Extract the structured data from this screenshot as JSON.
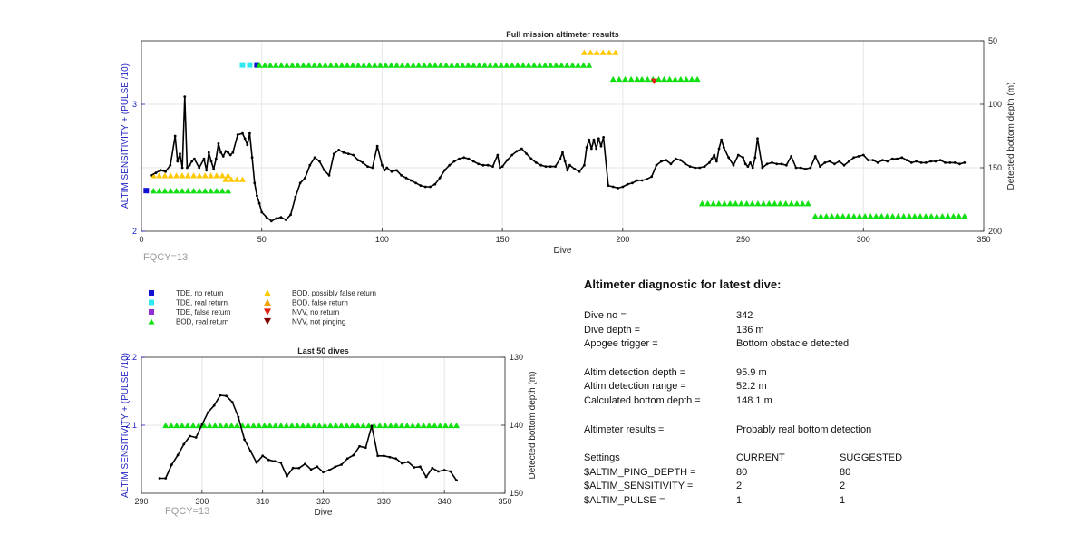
{
  "colors": {
    "tde_no_return": "#1010d0",
    "tde_real_return": "#30e8f0",
    "tde_false_return": "#9030d0",
    "bod_real_return": "#10e010",
    "bod_possibly_false": "#ffc800",
    "bod_false_return": "#f0a000",
    "nvv_no_return": "#e02010",
    "nvv_not_pinging": "#800000",
    "left_axis": "#2020c0",
    "series_line": "#000000",
    "fqcy_text": "#9a9a9a"
  },
  "chart_data": [
    {
      "type": "line",
      "title": "Full mission altimeter results",
      "xlabel": "Dive",
      "ylabel_left": "ALTIM SENSITIVITY + (PULSE /10)",
      "ylabel_right": "Detected bottom depth (m)",
      "xlim": [
        0,
        350
      ],
      "ylim_left": [
        2,
        3.5
      ],
      "ylim_right": [
        50,
        200
      ],
      "right_axis_reversed": true,
      "xticks": [
        "0",
        "50",
        "100",
        "150",
        "200",
        "250",
        "300",
        "350"
      ],
      "yticks_left": [
        "2",
        "3"
      ],
      "yticks_right": [
        "50",
        "100",
        "150",
        "200"
      ],
      "grid": true,
      "annotation": "FQCY=13",
      "bottom_depth_series": {
        "x": [
          4,
          6,
          8,
          10,
          12,
          14,
          15,
          16,
          17,
          18,
          19,
          20,
          21,
          22,
          24,
          26,
          27,
          28,
          29,
          30,
          31,
          32,
          33,
          34,
          35,
          36,
          37,
          38,
          40,
          42,
          43,
          44,
          45,
          46,
          47,
          48,
          49,
          50,
          52,
          54,
          56,
          58,
          60,
          62,
          64,
          66,
          68,
          70,
          72,
          74,
          76,
          78,
          80,
          82,
          84,
          86,
          88,
          90,
          92,
          94,
          96,
          98,
          100,
          101,
          102,
          104,
          106,
          108,
          110,
          112,
          114,
          116,
          118,
          120,
          122,
          124,
          126,
          128,
          130,
          132,
          134,
          136,
          138,
          140,
          142,
          144,
          146,
          148,
          149,
          150,
          152,
          154,
          156,
          158,
          160,
          162,
          164,
          166,
          168,
          170,
          172,
          174,
          175,
          176,
          177,
          178,
          180,
          182,
          184,
          185,
          186,
          187,
          188,
          189,
          190,
          191,
          192,
          194,
          196,
          198,
          200,
          202,
          204,
          206,
          208,
          210,
          212,
          214,
          216,
          218,
          220,
          222,
          224,
          226,
          228,
          230,
          232,
          234,
          236,
          237,
          238,
          239,
          240,
          241,
          242,
          244,
          246,
          248,
          250,
          251,
          252,
          253,
          254,
          255,
          256,
          258,
          260,
          262,
          264,
          266,
          268,
          270,
          272,
          274,
          276,
          278,
          280,
          282,
          284,
          286,
          288,
          290,
          292,
          294,
          296,
          298,
          300,
          302,
          304,
          306,
          308,
          310,
          312,
          314,
          316,
          318,
          320,
          322,
          324,
          326,
          328,
          330,
          332,
          334,
          336,
          338,
          340,
          342
        ],
        "y": [
          156,
          154,
          152,
          153,
          148,
          125,
          145,
          139,
          150,
          94,
          150,
          148,
          145,
          143,
          150,
          143,
          152,
          138,
          145,
          151,
          143,
          131,
          138,
          141,
          137,
          138,
          140,
          138,
          124,
          123,
          127,
          132,
          123,
          142,
          162,
          172,
          178,
          185,
          189,
          192,
          190,
          189,
          191,
          187,
          173,
          162,
          158,
          148,
          142,
          145,
          152,
          156,
          139,
          136,
          138,
          139,
          140,
          144,
          146,
          149,
          150,
          133,
          148,
          152,
          150,
          153,
          152,
          156,
          158,
          160,
          162,
          164,
          165,
          165,
          163,
          158,
          152,
          148,
          145,
          143,
          142,
          143,
          145,
          147,
          148,
          148,
          149,
          140,
          150,
          149,
          144,
          140,
          137,
          135,
          139,
          143,
          146,
          148,
          149,
          149,
          149,
          143,
          138,
          145,
          152,
          148,
          151,
          153,
          148,
          134,
          128,
          135,
          128,
          135,
          127,
          133,
          126,
          164,
          165,
          166,
          165,
          163,
          162,
          160,
          160,
          159,
          157,
          148,
          145,
          144,
          147,
          143,
          144,
          147,
          149,
          150,
          150,
          149,
          146,
          143,
          140,
          145,
          135,
          128,
          134,
          142,
          148,
          140,
          142,
          147,
          149,
          146,
          150,
          142,
          127,
          150,
          147,
          146,
          147,
          147,
          148,
          141,
          150,
          150,
          151,
          150,
          141,
          149,
          146,
          145,
          147,
          145,
          148,
          145,
          142,
          141,
          140,
          144,
          144,
          146,
          144,
          145,
          143,
          143,
          142,
          144,
          146,
          145,
          146,
          146,
          145,
          145,
          144,
          146,
          146,
          146,
          147,
          146
        ]
      },
      "marker_bands": [
        {
          "category": "BOD, possibly false return",
          "x_start": 5,
          "x_end": 36,
          "y_right": 156
        },
        {
          "category": "BOD, real return",
          "x_start": 5,
          "x_end": 36,
          "y_right": 168
        },
        {
          "category": "TDE, no return",
          "x_start": 2,
          "x_end": 2,
          "y_right": 168
        },
        {
          "category": "BOD, possibly false return",
          "x_start": 35,
          "x_end": 42,
          "y_right": 159
        },
        {
          "category": "TDE, real return",
          "x_start": 42,
          "x_end": 48,
          "y_right": 69
        },
        {
          "category": "TDE, no return",
          "x_start": 48,
          "x_end": 48,
          "y_right": 69
        },
        {
          "category": "BOD, real return",
          "x_start": 49,
          "x_end": 186,
          "y_right": 69
        },
        {
          "category": "BOD, possibly false return",
          "x_start": 184,
          "x_end": 197,
          "y_right": 59
        },
        {
          "category": "BOD, real return",
          "x_start": 196,
          "x_end": 206,
          "y_right": 80
        },
        {
          "category": "BOD, real return",
          "x_start": 208,
          "x_end": 231,
          "y_right": 80
        },
        {
          "category": "NVV, no return",
          "x_start": 213,
          "x_end": 213,
          "y_right": 82
        },
        {
          "category": "BOD, real return",
          "x_start": 233,
          "x_end": 277,
          "y_right": 178
        },
        {
          "category": "BOD, real return",
          "x_start": 280,
          "x_end": 342,
          "y_right": 188
        }
      ]
    },
    {
      "type": "line",
      "title": "Last 50 dives",
      "xlabel": "Dive",
      "ylabel_left": "ALTIM SENSITIVITY + (PULSE /10)",
      "ylabel_right": "Detected bottom depth (m)",
      "xlim": [
        290,
        350
      ],
      "ylim_left": [
        2,
        2.2
      ],
      "ylim_right": [
        130,
        150
      ],
      "right_axis_reversed": true,
      "xticks": [
        "290",
        "300",
        "310",
        "320",
        "330",
        "340",
        "350"
      ],
      "yticks_left": [
        "2.1",
        "2.2"
      ],
      "yticks_right": [
        "130",
        "140",
        "150"
      ],
      "grid": true,
      "annotation": "FQCY=13",
      "bottom_depth_series": {
        "x": [
          293,
          294,
          295,
          296,
          297,
          298,
          299,
          300,
          301,
          302,
          303,
          304,
          305,
          306,
          307,
          308,
          309,
          310,
          311,
          312,
          313,
          314,
          315,
          316,
          317,
          318,
          319,
          320,
          321,
          322,
          323,
          324,
          325,
          326,
          327,
          328,
          329,
          330,
          331,
          332,
          333,
          334,
          335,
          336,
          337,
          338,
          339,
          340,
          341,
          342
        ],
        "y": [
          147.8,
          147.8,
          145.8,
          144.4,
          142.8,
          141.6,
          141.8,
          139.9,
          138.1,
          137.1,
          135.6,
          135.7,
          136.6,
          138.8,
          142.1,
          143.8,
          145.5,
          144.5,
          145.1,
          145.3,
          145.5,
          147.5,
          146.3,
          146.3,
          145.7,
          146.5,
          146.1,
          146.9,
          146.6,
          146.1,
          145.8,
          144.9,
          144.4,
          143.1,
          143.3,
          140.1,
          144.5,
          144.5,
          144.7,
          144.9,
          145.6,
          145.4,
          146.2,
          146.1,
          147.6,
          146.3,
          146.8,
          146.6,
          146.8,
          148.1
        ]
      },
      "marker_bands": [
        {
          "category": "BOD, real return",
          "x_start": 294,
          "x_end": 342,
          "y_left": 2.1
        }
      ]
    }
  ],
  "legend": {
    "left": [
      {
        "label": "TDE, no return",
        "marker": "square",
        "color_key": "tde_no_return"
      },
      {
        "label": "TDE, real return",
        "marker": "square",
        "color_key": "tde_real_return"
      },
      {
        "label": "TDE, false return",
        "marker": "square",
        "color_key": "tde_false_return"
      },
      {
        "label": "BOD, real return",
        "marker": "triangle-up",
        "color_key": "bod_real_return"
      }
    ],
    "right": [
      {
        "label": "BOD, possibly false return",
        "marker": "triangle-up",
        "color_key": "bod_possibly_false"
      },
      {
        "label": "BOD, false return",
        "marker": "triangle-up",
        "color_key": "bod_false_return"
      },
      {
        "label": "NVV, no return",
        "marker": "triangle-down",
        "color_key": "nvv_no_return"
      },
      {
        "label": "NVV, not pinging",
        "marker": "triangle-down",
        "color_key": "nvv_not_pinging"
      }
    ]
  },
  "diagnostic": {
    "title": "Altimeter diagnostic for latest dive:",
    "dive_no_label": "Dive no =",
    "dive_no_value": "342",
    "dive_depth_label": "Dive depth =",
    "dive_depth_value": "136 m",
    "apogee_label": "Apogee trigger =",
    "apogee_value": "Bottom obstacle detected",
    "altim_depth_label": "Altim detection depth =",
    "altim_depth_value": "95.9 m",
    "altim_range_label": "Altim detection range =",
    "altim_range_value": "52.2 m",
    "calc_depth_label": "Calculated bottom depth =",
    "calc_depth_value": "148.1 m",
    "results_label": "Altimeter results =",
    "results_value": "Probably real bottom detection",
    "settings_label": "Settings",
    "current_label": "CURRENT",
    "suggested_label": "SUGGESTED",
    "ping_depth_label": "$ALTIM_PING_DEPTH =",
    "ping_depth_current": "80",
    "ping_depth_suggested": "80",
    "sensitivity_label": "$ALTIM_SENSITIVITY =",
    "sensitivity_current": "2",
    "sensitivity_suggested": "2",
    "pulse_label": "$ALTIM_PULSE =",
    "pulse_current": "1",
    "pulse_suggested": "1"
  }
}
